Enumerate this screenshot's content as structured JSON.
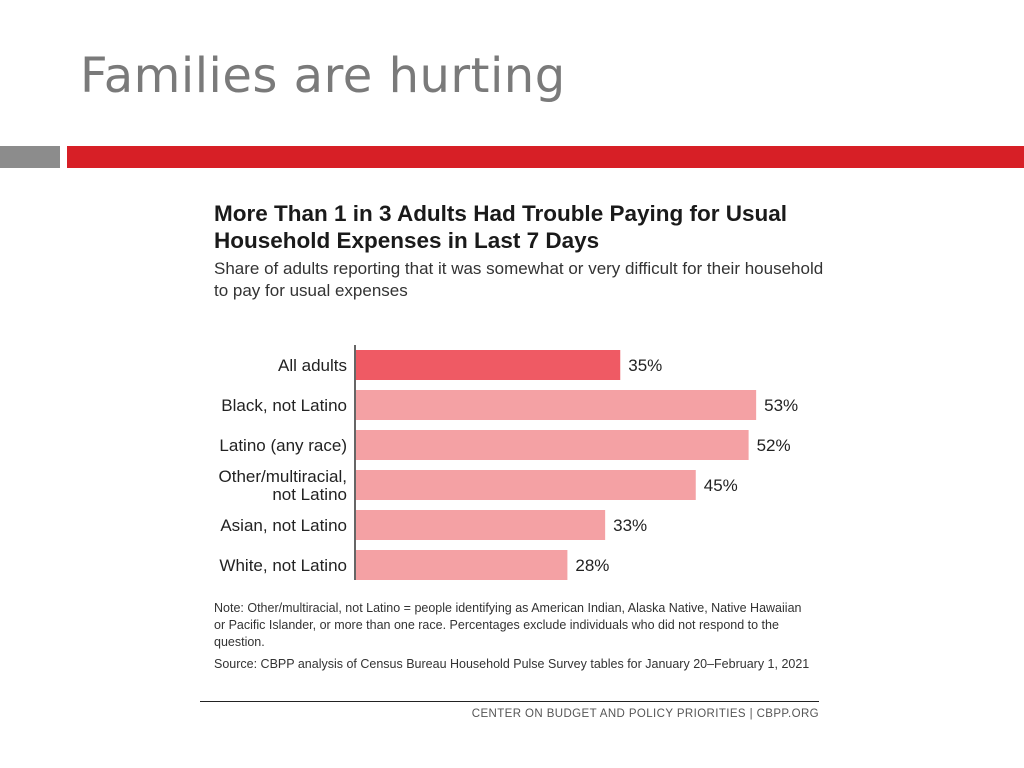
{
  "slide": {
    "title": "Families are hurting"
  },
  "chart_data": {
    "type": "bar",
    "orientation": "horizontal",
    "title": "More Than 1 in 3 Adults Had Trouble Paying for Usual Household Expenses in Last 7 Days",
    "subtitle": "Share of adults reporting that it was somewhat or very difficult for their household to pay for usual expenses",
    "categories": [
      "All adults",
      "Black, not Latino",
      "Latino (any race)",
      "Other/multiracial, not Latino",
      "Asian, not Latino",
      "White, not Latino"
    ],
    "category_lines": [
      [
        "All adults"
      ],
      [
        "Black, not Latino"
      ],
      [
        "Latino (any race)"
      ],
      [
        "Other/multiracial,",
        "not Latino"
      ],
      [
        "Asian, not Latino"
      ],
      [
        "White, not Latino"
      ]
    ],
    "values": [
      35,
      53,
      52,
      45,
      33,
      28
    ],
    "value_labels": [
      "35%",
      "53%",
      "52%",
      "45%",
      "33%",
      "28%"
    ],
    "colors": [
      "#ef5a64",
      "#f4a1a4",
      "#f4a1a4",
      "#f4a1a4",
      "#f4a1a4",
      "#f4a1a4"
    ],
    "xlim": [
      0,
      60
    ],
    "grid": false,
    "legend": "none"
  },
  "notes": {
    "note": "Note: Other/multiracial, not Latino = people identifying as American Indian, Alaska Native, Native Hawaiian or Pacific Islander, or more than one race. Percentages exclude individuals who did not respond to the question.",
    "source": "Source: CBPP analysis of Census Bureau Household Pulse Survey tables for January 20–February 1, 2021"
  },
  "footer": {
    "credit": "CENTER ON BUDGET AND POLICY PRIORITIES | CBPP.ORG"
  },
  "colors": {
    "accent_red": "#d71f26",
    "accent_gray": "#8c8c8c",
    "highlight_bar": "#ef5a64",
    "bar": "#f4a1a4"
  }
}
